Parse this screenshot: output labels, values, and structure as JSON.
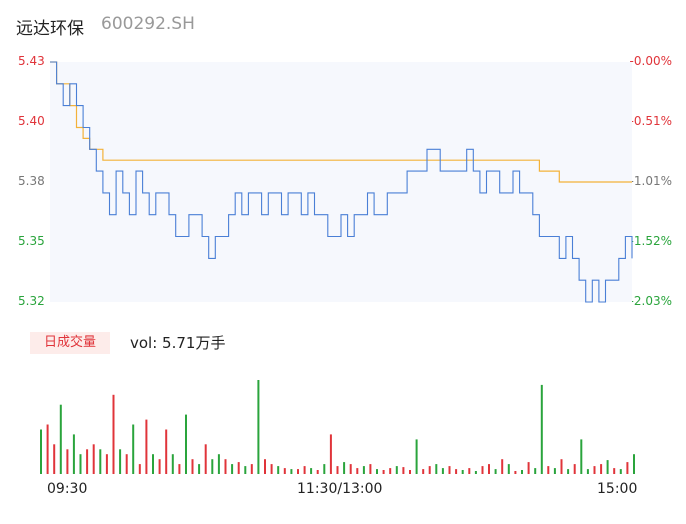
{
  "header": {
    "name": "远达环保",
    "code": "600292.SH"
  },
  "chart_data": {
    "type": "line",
    "price_axis": {
      "ticks": [
        "5.43",
        "5.40",
        "5.38",
        "5.35",
        "5.32"
      ],
      "ylim": [
        5.32,
        5.43
      ]
    },
    "pct_axis": {
      "ticks": [
        "-0.00%",
        "-0.51%",
        "-1.01%",
        "-1.52%",
        "-2.03%"
      ]
    },
    "x_ticks": [
      "09:30",
      "11:30/13:00",
      "15:00"
    ],
    "series": [
      {
        "values": [
          5.43,
          5.42,
          5.41,
          5.42,
          5.41,
          5.4,
          5.39,
          5.38,
          5.37,
          5.36,
          5.38,
          5.37,
          5.36,
          5.38,
          5.37,
          5.36,
          5.37,
          5.37,
          5.36,
          5.35,
          5.35,
          5.36,
          5.36,
          5.35,
          5.34,
          5.35,
          5.35,
          5.36,
          5.37,
          5.36,
          5.37,
          5.37,
          5.36,
          5.37,
          5.37,
          5.36,
          5.37,
          5.37,
          5.36,
          5.37,
          5.36,
          5.36,
          5.35,
          5.35,
          5.36,
          5.35,
          5.36,
          5.36,
          5.37,
          5.36,
          5.36,
          5.37,
          5.37,
          5.37,
          5.38,
          5.38,
          5.38,
          5.39,
          5.39,
          5.38,
          5.38,
          5.38,
          5.38,
          5.39,
          5.38,
          5.37,
          5.38,
          5.38,
          5.37,
          5.37,
          5.38,
          5.37,
          5.37,
          5.36,
          5.35,
          5.35,
          5.35,
          5.34,
          5.35,
          5.34,
          5.33,
          5.32,
          5.33,
          5.32,
          5.33,
          5.33,
          5.34,
          5.35,
          5.34
        ]
      },
      {
        "values": [
          5.43,
          5.42,
          5.42,
          5.41,
          5.4,
          5.395,
          5.39,
          5.39,
          5.385,
          5.385,
          5.385,
          5.385,
          5.385,
          5.385,
          5.385,
          5.385,
          5.385,
          5.385,
          5.385,
          5.385,
          5.385,
          5.385,
          5.385,
          5.385,
          5.385,
          5.385,
          5.385,
          5.385,
          5.385,
          5.385,
          5.385,
          5.385,
          5.385,
          5.385,
          5.385,
          5.385,
          5.385,
          5.385,
          5.385,
          5.385,
          5.385,
          5.385,
          5.385,
          5.385,
          5.385,
          5.385,
          5.385,
          5.385,
          5.385,
          5.385,
          5.385,
          5.385,
          5.385,
          5.385,
          5.385,
          5.385,
          5.385,
          5.385,
          5.385,
          5.385,
          5.385,
          5.385,
          5.385,
          5.385,
          5.385,
          5.385,
          5.385,
          5.385,
          5.385,
          5.385,
          5.385,
          5.385,
          5.385,
          5.385,
          5.38,
          5.38,
          5.38,
          5.375,
          5.375,
          5.375,
          5.375,
          5.375,
          5.375,
          5.375,
          5.375,
          5.375,
          5.375,
          5.375,
          5.375
        ]
      }
    ],
    "volume": {
      "values": [
        45,
        50,
        30,
        70,
        25,
        40,
        20,
        25,
        30,
        25,
        20,
        80,
        25,
        20,
        50,
        10,
        55,
        20,
        15,
        45,
        20,
        10,
        60,
        15,
        10,
        30,
        15,
        20,
        15,
        10,
        12,
        8,
        10,
        95,
        15,
        10,
        8,
        6,
        5,
        5,
        8,
        6,
        4,
        10,
        40,
        8,
        12,
        10,
        6,
        8,
        10,
        5,
        4,
        6,
        8,
        7,
        4,
        35,
        5,
        8,
        10,
        6,
        8,
        5,
        4,
        6,
        3,
        8,
        10,
        5,
        15,
        10,
        3,
        4,
        12,
        6,
        90,
        8,
        6,
        15,
        5,
        10,
        35,
        5,
        8,
        10,
        14,
        6,
        5,
        12,
        20
      ],
      "colors": [
        "g",
        "r",
        "r",
        "g",
        "r",
        "g",
        "g",
        "r",
        "r",
        "g",
        "r",
        "r",
        "g",
        "r",
        "g",
        "r",
        "r",
        "g",
        "r",
        "r",
        "g",
        "r",
        "g",
        "r",
        "g",
        "r",
        "g",
        "g",
        "r",
        "g",
        "r",
        "g",
        "r",
        "g",
        "r",
        "r",
        "g",
        "r",
        "g",
        "r",
        "r",
        "g",
        "r",
        "g",
        "r",
        "r",
        "g",
        "r",
        "r",
        "g",
        "r",
        "g",
        "r",
        "r",
        "g",
        "r",
        "r",
        "g",
        "r",
        "r",
        "g",
        "g",
        "r",
        "r",
        "g",
        "r",
        "g",
        "r",
        "r",
        "g",
        "r",
        "g",
        "r",
        "g",
        "r",
        "g",
        "g",
        "r",
        "g",
        "r",
        "g",
        "r",
        "g",
        "g",
        "r",
        "r",
        "g",
        "r",
        "g",
        "r",
        "g"
      ]
    },
    "colors": {
      "price": "#4a7fd6",
      "avg": "#f3b23a",
      "up": "#e0343a",
      "down": "#2aa43c"
    }
  },
  "volume_panel": {
    "button_label": "日成交量",
    "summary": "vol: 5.71万手"
  }
}
